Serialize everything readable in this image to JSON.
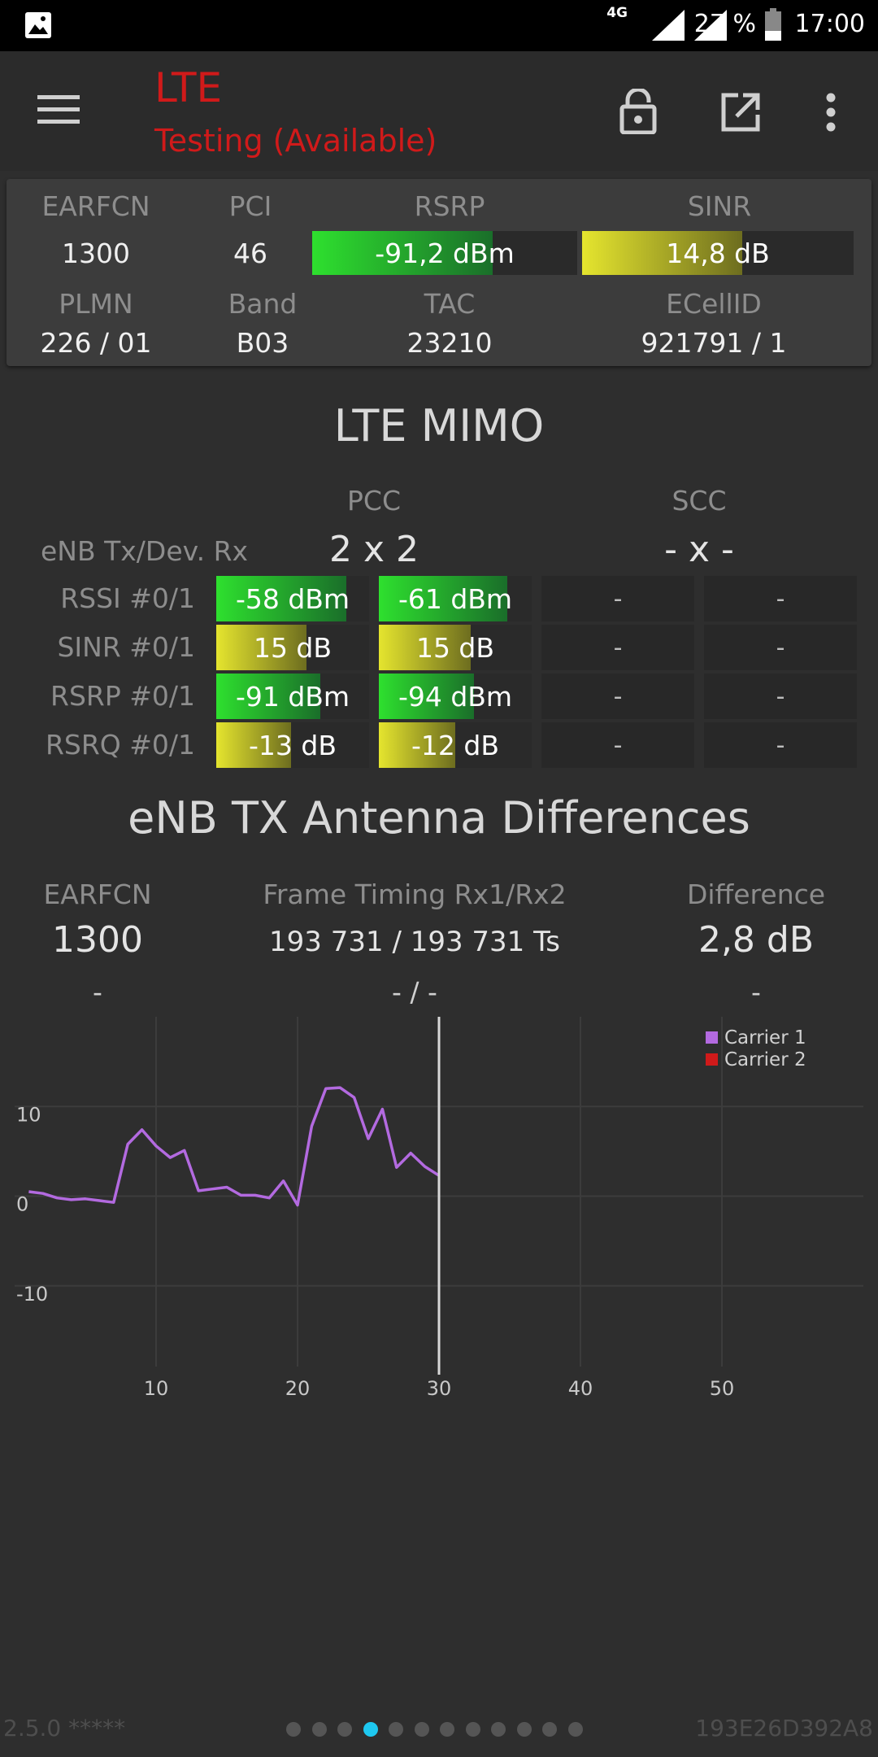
{
  "status_bar": {
    "network": "4G",
    "battery": "27 %",
    "time": "17:00"
  },
  "app_bar": {
    "title": "LTE",
    "subtitle": "Testing (Available)"
  },
  "info_card": {
    "earfcn_label": "EARFCN",
    "earfcn": "1300",
    "pci_label": "PCI",
    "pci": "46",
    "rsrp_label": "RSRP",
    "rsrp": "-91,2 dBm",
    "rsrp_level": 0.68,
    "sinr_label": "SINR",
    "sinr": "14,8 dB",
    "sinr_level": 0.59,
    "plmn_label": "PLMN",
    "plmn": "226 / 01",
    "band_label": "Band",
    "band": "B03",
    "tac_label": "TAC",
    "tac": "23210",
    "ecellid_label": "ECellID",
    "ecellid": "921791 / 1"
  },
  "mimo": {
    "title": "LTE MIMO",
    "pcc_label": "PCC",
    "scc_label": "SCC",
    "txrx_label": "eNB Tx/Dev. Rx",
    "pcc_txrx": "2 x 2",
    "scc_txrx": "- x -",
    "rows": [
      {
        "label": "RSSI #0/1",
        "v0": "-58 dBm",
        "l0": 0.85,
        "v1": "-61 dBm",
        "l1": 0.84,
        "color": "green",
        "s0": "-",
        "s1": "-"
      },
      {
        "label": "SINR #0/1",
        "v0": "15 dB",
        "l0": 0.59,
        "v1": "15 dB",
        "l1": 0.6,
        "color": "yellow",
        "s0": "-",
        "s1": "-"
      },
      {
        "label": "RSRP #0/1",
        "v0": "-91 dBm",
        "l0": 0.68,
        "v1": "-94 dBm",
        "l1": 0.62,
        "color": "green",
        "s0": "-",
        "s1": "-"
      },
      {
        "label": "RSRQ #0/1",
        "v0": "-13 dB",
        "l0": 0.49,
        "v1": "-12 dB",
        "l1": 0.5,
        "color": "yellow",
        "s0": "-",
        "s1": "-"
      }
    ]
  },
  "antenna": {
    "title": "eNB TX Antenna Differences",
    "earfcn_label": "EARFCN",
    "earfcn": "1300",
    "earfcn2": "-",
    "timing_label": "Frame Timing Rx1/Rx2",
    "timing": "193 731 / 193 731 Ts",
    "timing2": "- / -",
    "diff_label": "Difference",
    "diff": "2,8 dB",
    "diff2": "-"
  },
  "chart_data": {
    "type": "line",
    "xlim": [
      0,
      60
    ],
    "ylim": [
      -19,
      20
    ],
    "xticks": [
      10,
      20,
      30,
      40,
      50
    ],
    "yticks": [
      10,
      0,
      -10
    ],
    "grid": true,
    "legend_position": "top-right",
    "cursor_x": 30,
    "series": [
      {
        "name": "Carrier 1",
        "color": "#b36ae0",
        "x": [
          1,
          2,
          3,
          4,
          5,
          6,
          7,
          8,
          9,
          10,
          11,
          12,
          13,
          14,
          15,
          16,
          17,
          18,
          19,
          20,
          21,
          22,
          23,
          24,
          25,
          26,
          27,
          28,
          29,
          30
        ],
        "y": [
          0.5,
          0.3,
          -0.2,
          -0.4,
          -0.3,
          -0.5,
          -0.7,
          5.8,
          7.4,
          5.6,
          4.3,
          5.1,
          0.6,
          0.8,
          1.0,
          0.1,
          0.1,
          -0.2,
          1.7,
          -1.0,
          7.8,
          12.0,
          12.1,
          11.0,
          6.4,
          9.7,
          3.2,
          4.8,
          3.3,
          2.3
        ]
      },
      {
        "name": "Carrier 2",
        "color": "#d01a1a",
        "x": [],
        "y": []
      }
    ]
  },
  "footer": {
    "version": "2.5.0 *****",
    "device_id": "193E26D392A8",
    "page_count": 12,
    "active_page": 4
  },
  "colors": {
    "accent": "#d01a1a",
    "dot_active": "#1ec8f0",
    "green": "#2ee02e",
    "yellow": "#e5e52e"
  }
}
